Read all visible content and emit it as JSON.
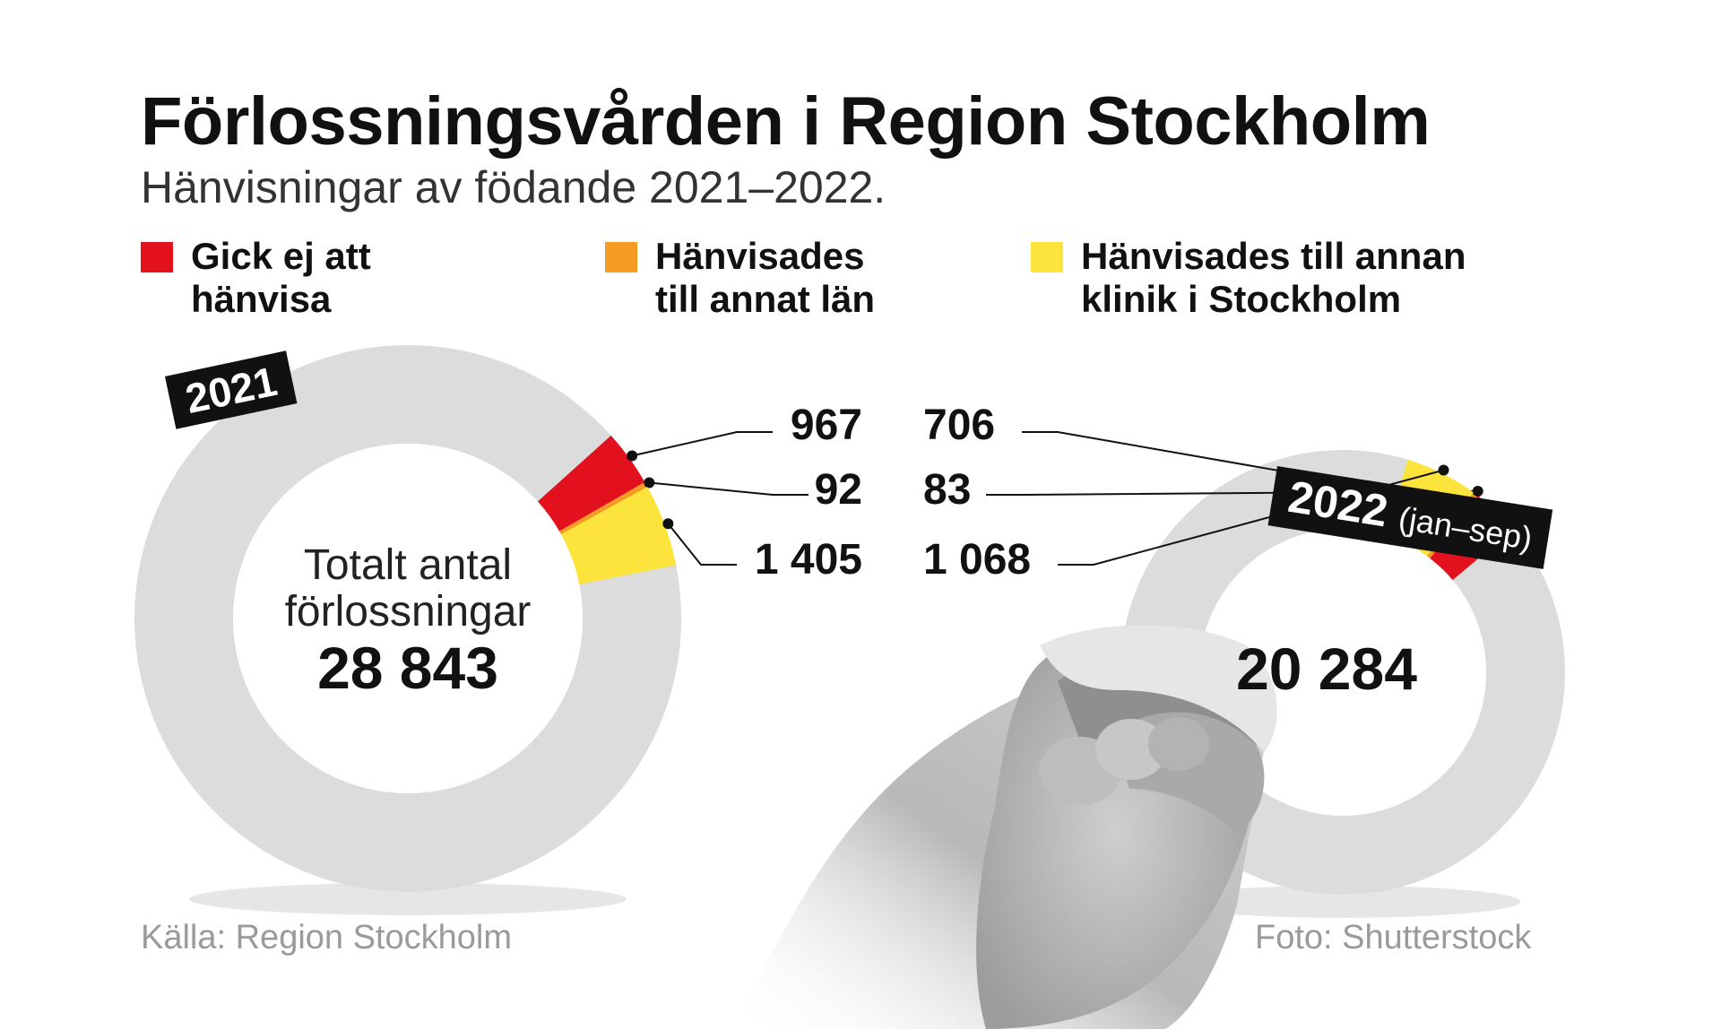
{
  "chart_data": [
    {
      "type": "pie",
      "title": "Förlossningsvården i Region Stockholm",
      "subtitle": "Hänvisningar av födande 2021–2022.",
      "year_tag": "2021",
      "year_suffix": "",
      "center_text_1": "Totalt antal",
      "center_text_2": "förlossningar",
      "total": 28843,
      "total_label": "28 843",
      "categories": [
        "Gick ej att hänvisa",
        "Hänvisades till annat län",
        "Hänvisades till annan klinik i Stockholm"
      ],
      "values": [
        967,
        92,
        1405
      ],
      "value_labels": [
        "967",
        "92",
        "1 405"
      ]
    },
    {
      "type": "pie",
      "year_tag": "2022",
      "year_suffix": "(jan–sep)",
      "total": 20284,
      "total_label": "20 284",
      "categories": [
        "Gick ej att hänvisa",
        "Hänvisades till annat län",
        "Hänvisades till annan klinik i Stockholm"
      ],
      "values": [
        706,
        83,
        1068
      ],
      "value_labels": [
        "706",
        "83",
        "1 068"
      ]
    }
  ],
  "header": {
    "title": "Förlossningsvården i Region Stockholm",
    "subtitle": "Hänvisningar av födande 2021–2022."
  },
  "legend": [
    {
      "label": "Gick ej att\nhänvisa",
      "color": "#e3101d"
    },
    {
      "label": "Hänvisades\ntill annat län",
      "color": "#f59a23"
    },
    {
      "label": "Hänvisades till annan\nklinik i Stockholm",
      "color": "#fde43c"
    }
  ],
  "colors": {
    "ring": "#dcdcdc",
    "red": "#e3101d",
    "orange": "#f59a23",
    "yellow": "#fde43c",
    "tag": "#111111"
  },
  "footer": {
    "source": "Källa: Region Stockholm",
    "photo": "Foto: Shutterstock"
  },
  "photo_icon": "hands-photo"
}
